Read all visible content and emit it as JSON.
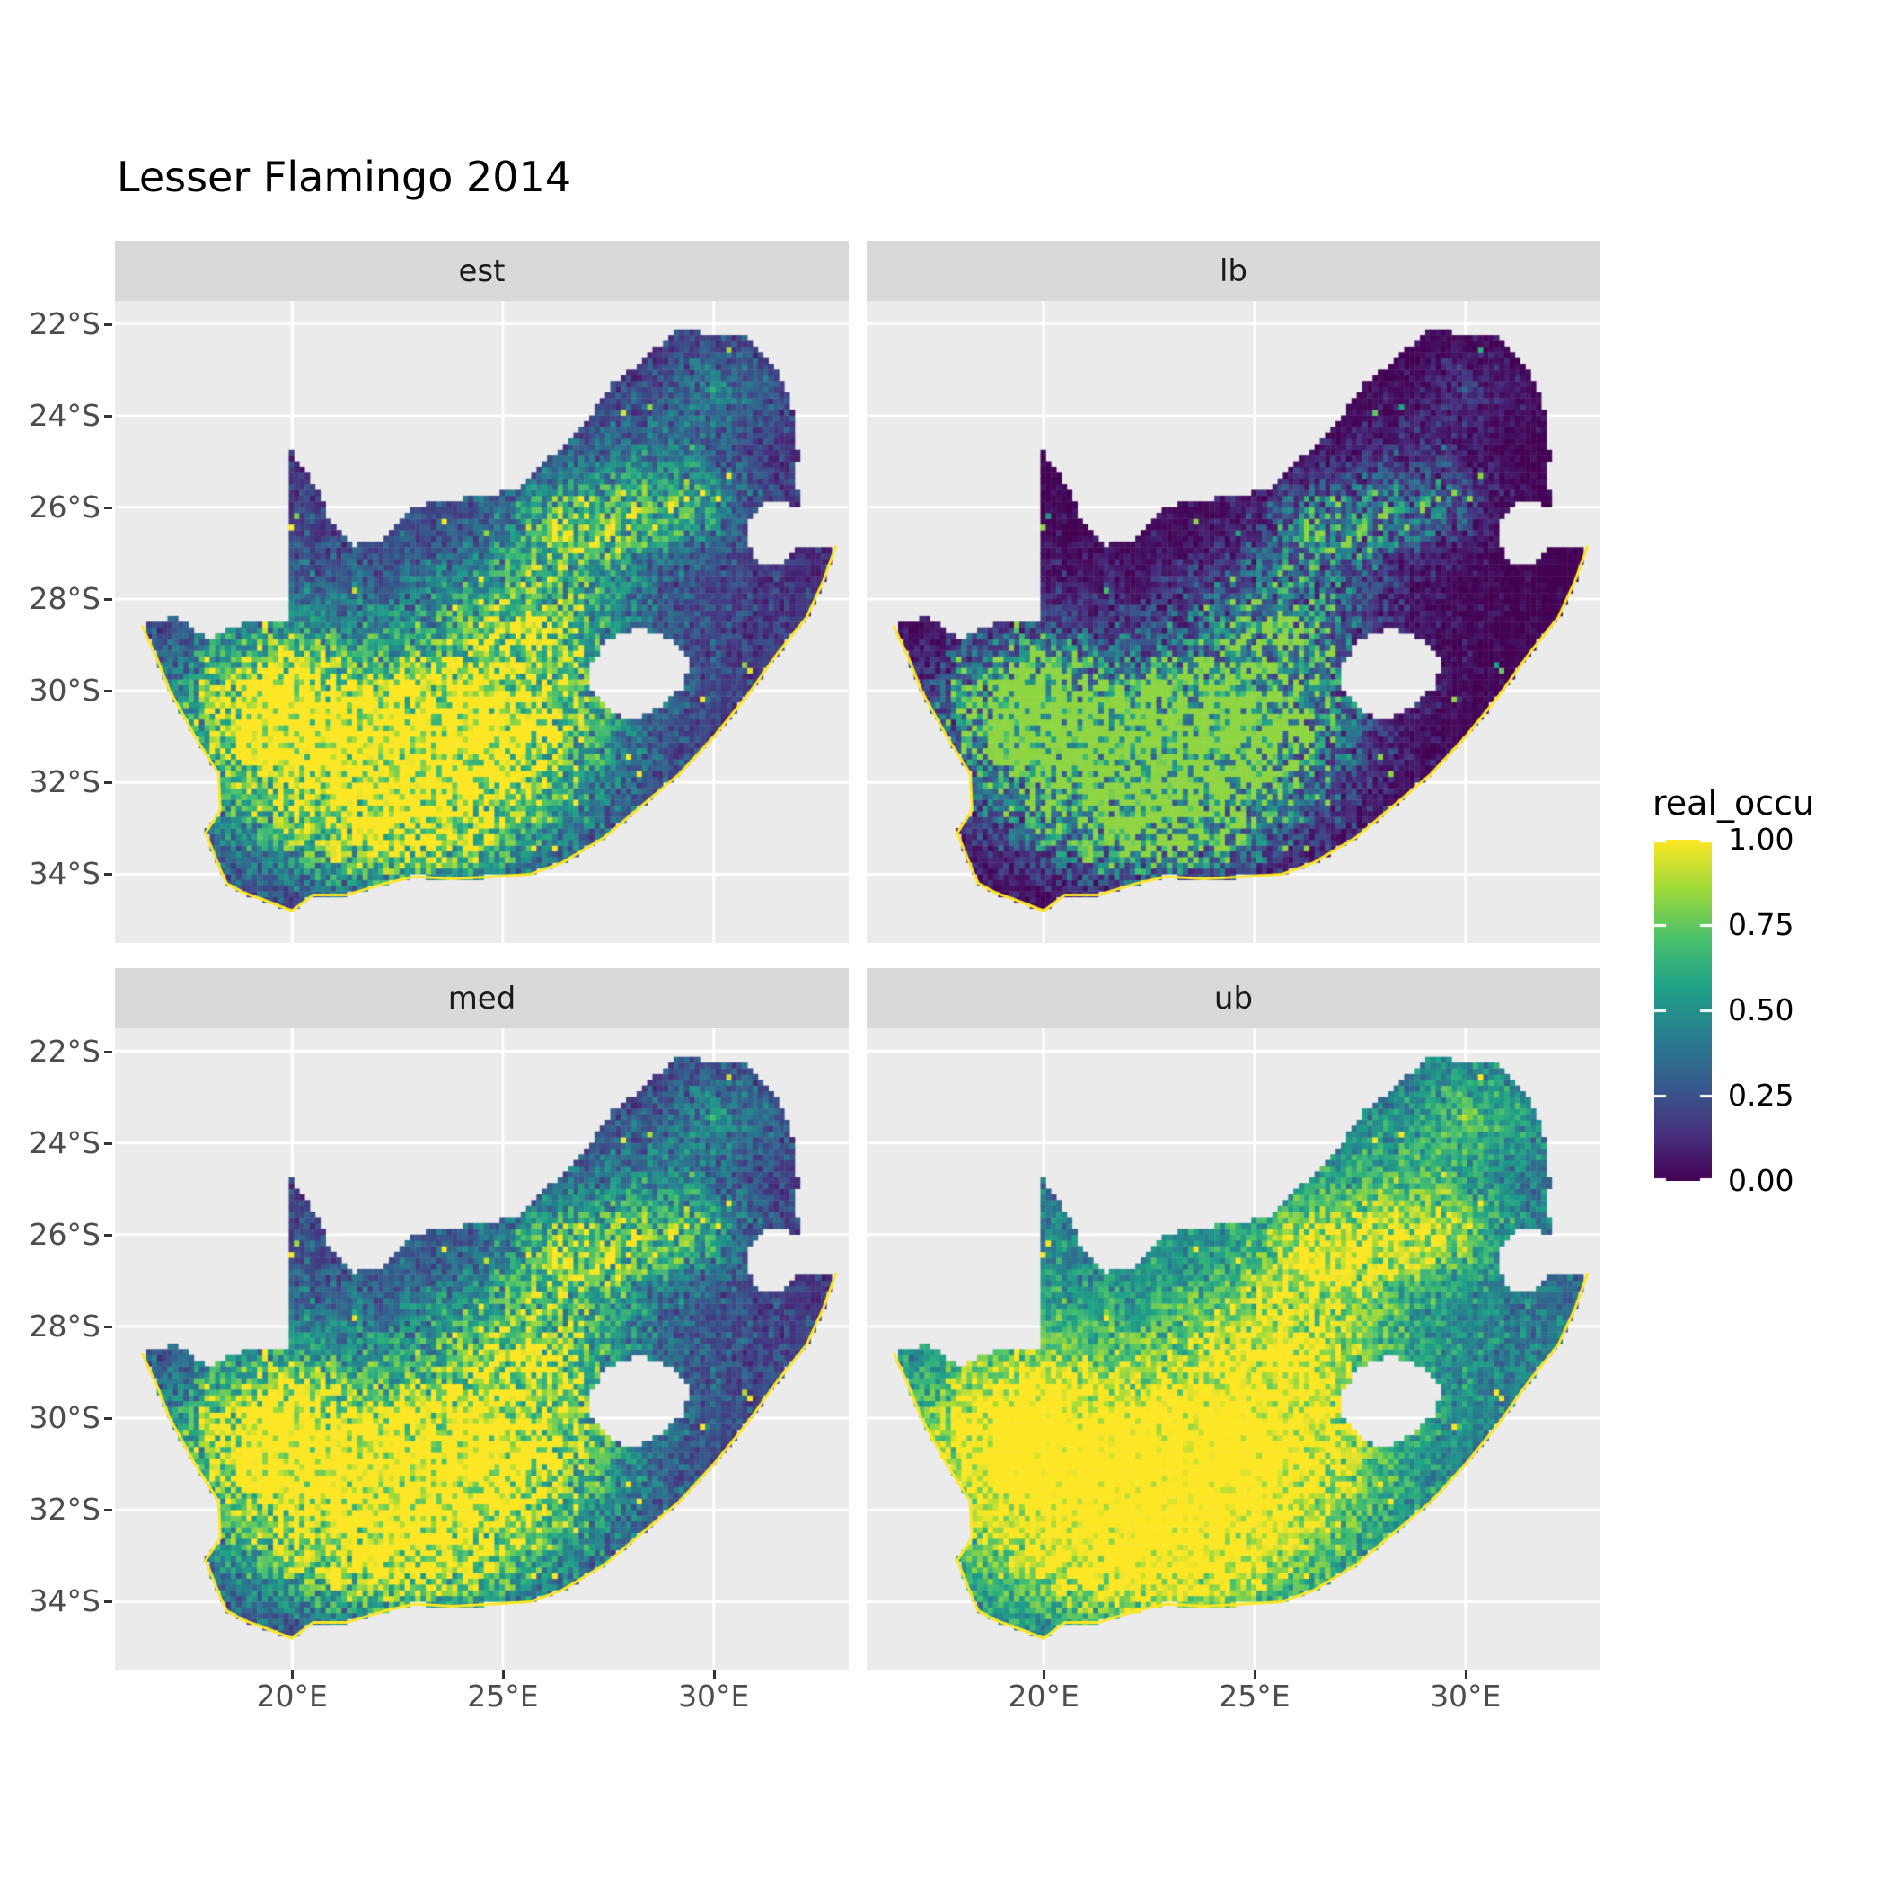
{
  "chart_data": {
    "type": "heatmap",
    "title": "Lesser Flamingo 2014",
    "facets": [
      {
        "label": "est",
        "gamma": 1.0,
        "gain": 1.0,
        "lift": 0.0
      },
      {
        "label": "lb",
        "gamma": 1.9,
        "gain": 0.85,
        "lift": -0.02
      },
      {
        "label": "med",
        "gamma": 0.9,
        "gain": 1.05,
        "lift": 0.0
      },
      {
        "label": "ub",
        "gamma": 0.6,
        "gain": 1.15,
        "lift": 0.03
      }
    ],
    "legend": {
      "title": "real_occu",
      "ticks": [
        {
          "label": "1.00",
          "value": 1.0
        },
        {
          "label": "0.75",
          "value": 0.75
        },
        {
          "label": "0.50",
          "value": 0.5
        },
        {
          "label": "0.25",
          "value": 0.25
        },
        {
          "label": "0.00",
          "value": 0.0
        }
      ],
      "range": [
        0,
        1
      ],
      "position": "right"
    },
    "x_axis": {
      "range": [
        15.8,
        33.2
      ],
      "ticks": [
        {
          "label": "20°E",
          "value": 20
        },
        {
          "label": "25°E",
          "value": 25
        },
        {
          "label": "30°E",
          "value": 30
        }
      ]
    },
    "y_axis": {
      "range": [
        21.5,
        35.5
      ],
      "ticks": [
        {
          "label": "22°S",
          "value": 22
        },
        {
          "label": "24°S",
          "value": 24
        },
        {
          "label": "26°S",
          "value": 26
        },
        {
          "label": "28°S",
          "value": 28
        },
        {
          "label": "30°S",
          "value": 30
        },
        {
          "label": "32°S",
          "value": 32
        },
        {
          "label": "34°S",
          "value": 34
        }
      ]
    },
    "grid": true,
    "panel_bg": "#EBEBEB",
    "strip_bg": "#D9D9D9",
    "grid_color": "#FFFFFF",
    "axis_text_color": "#4D4D4D",
    "outline_color": "#FDE725",
    "palette": {
      "name": "viridis",
      "stops": [
        [
          0.0,
          "#440154"
        ],
        [
          0.14,
          "#46327E"
        ],
        [
          0.29,
          "#365C8D"
        ],
        [
          0.43,
          "#277F8E"
        ],
        [
          0.57,
          "#1FA187"
        ],
        [
          0.71,
          "#4AC16D"
        ],
        [
          0.86,
          "#A0DA39"
        ],
        [
          1.0,
          "#FDE725"
        ]
      ]
    },
    "map": {
      "region": "South Africa",
      "cell_deg": 0.125,
      "coast_start_index": 35,
      "outline": [
        [
          16.45,
          -28.6
        ],
        [
          17.2,
          -28.4
        ],
        [
          18.0,
          -28.85
        ],
        [
          18.9,
          -28.55
        ],
        [
          19.5,
          -28.5
        ],
        [
          19.98,
          -28.45
        ],
        [
          19.98,
          -24.77
        ],
        [
          20.6,
          -25.6
        ],
        [
          20.9,
          -26.3
        ],
        [
          21.4,
          -26.85
        ],
        [
          22.1,
          -26.7
        ],
        [
          22.9,
          -26.0
        ],
        [
          23.7,
          -25.85
        ],
        [
          24.6,
          -25.75
        ],
        [
          25.5,
          -25.55
        ],
        [
          25.9,
          -25.1
        ],
        [
          26.5,
          -24.6
        ],
        [
          26.95,
          -24.2
        ],
        [
          27.6,
          -23.3
        ],
        [
          28.3,
          -22.85
        ],
        [
          29.05,
          -22.15
        ],
        [
          29.9,
          -22.2
        ],
        [
          30.8,
          -22.3
        ],
        [
          31.55,
          -23.1
        ],
        [
          31.9,
          -23.9
        ],
        [
          32.0,
          -24.8
        ],
        [
          31.95,
          -25.5
        ],
        [
          32.05,
          -25.98
        ],
        [
          31.3,
          -25.85
        ],
        [
          30.85,
          -26.3
        ],
        [
          30.8,
          -26.85
        ],
        [
          31.1,
          -27.2
        ],
        [
          31.6,
          -27.3
        ],
        [
          31.98,
          -26.9
        ],
        [
          32.55,
          -26.86
        ],
        [
          32.89,
          -26.86
        ],
        [
          32.6,
          -27.6
        ],
        [
          32.2,
          -28.4
        ],
        [
          31.5,
          -29.2
        ],
        [
          30.8,
          -30.1
        ],
        [
          30.0,
          -31.0
        ],
        [
          29.2,
          -31.8
        ],
        [
          28.3,
          -32.5
        ],
        [
          27.4,
          -33.2
        ],
        [
          26.4,
          -33.75
        ],
        [
          25.65,
          -34.0
        ],
        [
          24.8,
          -34.05
        ],
        [
          23.8,
          -34.1
        ],
        [
          22.9,
          -34.05
        ],
        [
          22.2,
          -34.2
        ],
        [
          21.3,
          -34.45
        ],
        [
          20.5,
          -34.45
        ],
        [
          20.0,
          -34.8
        ],
        [
          19.3,
          -34.55
        ],
        [
          18.85,
          -34.4
        ],
        [
          18.45,
          -34.2
        ],
        [
          18.3,
          -33.9
        ],
        [
          17.95,
          -33.1
        ],
        [
          18.3,
          -32.6
        ],
        [
          18.25,
          -31.8
        ],
        [
          17.7,
          -31.0
        ],
        [
          17.1,
          -30.0
        ],
        [
          16.8,
          -29.3
        ]
      ],
      "lesotho_hole": [
        [
          27.0,
          -29.6
        ],
        [
          27.4,
          -28.95
        ],
        [
          28.2,
          -28.6
        ],
        [
          29.0,
          -28.9
        ],
        [
          29.45,
          -29.35
        ],
        [
          29.25,
          -29.95
        ],
        [
          28.7,
          -30.4
        ],
        [
          28.0,
          -30.65
        ],
        [
          27.35,
          -30.3
        ],
        [
          27.0,
          -29.9
        ]
      ],
      "base_floor": 0.05,
      "hotspots": [
        {
          "lon": 21.0,
          "lat": -31.3,
          "sx": 3.2,
          "sy": 2.1,
          "amp": 0.7
        },
        {
          "lon": 24.8,
          "lat": -31.2,
          "sx": 2.6,
          "sy": 1.9,
          "amp": 0.7
        },
        {
          "lon": 19.3,
          "lat": -30.2,
          "sx": 1.7,
          "sy": 1.6,
          "amp": 0.55
        },
        {
          "lon": 22.5,
          "lat": -33.3,
          "sx": 3.0,
          "sy": 1.1,
          "amp": 0.45
        },
        {
          "lon": 26.9,
          "lat": -26.4,
          "sx": 1.7,
          "sy": 1.1,
          "amp": 0.5
        },
        {
          "lon": 29.3,
          "lat": -26.0,
          "sx": 1.4,
          "sy": 0.9,
          "amp": 0.35
        },
        {
          "lon": 25.8,
          "lat": -28.6,
          "sx": 2.2,
          "sy": 1.6,
          "amp": 0.4
        },
        {
          "lon": 24.0,
          "lat": -29.5,
          "sx": 6.5,
          "sy": 4.0,
          "amp": 0.22
        },
        {
          "lon": 30.2,
          "lat": -23.3,
          "sx": 1.5,
          "sy": 1.0,
          "amp": 0.22
        },
        {
          "lon": 28.6,
          "lat": -24.9,
          "sx": 2.2,
          "sy": 1.4,
          "amp": 0.18
        }
      ],
      "noise": {
        "mult_min": 0.5,
        "mult_span": 0.95,
        "add": 0.2
      },
      "speckle": {
        "threshold": 0.9935,
        "boost": 0.55
      }
    }
  }
}
